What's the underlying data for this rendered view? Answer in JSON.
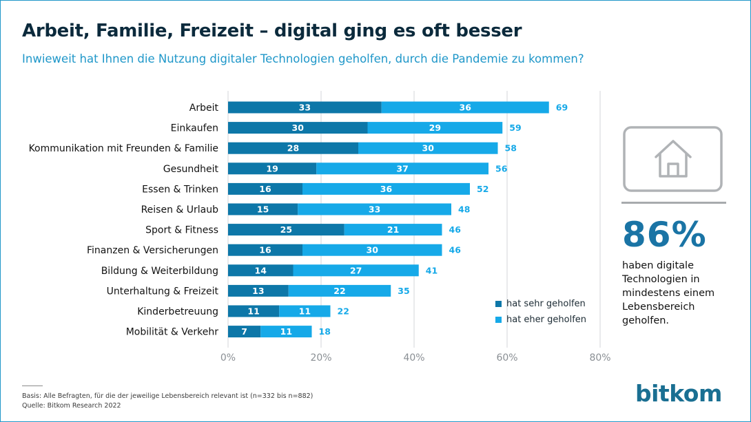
{
  "title": "Arbeit, Familie, Freizeit – digital ging es oft besser",
  "subtitle": "Inwieweit hat Ihnen die Nutzung digitaler Technologien geholfen, durch die Pandemie zu kommen?",
  "colors": {
    "dark": "#0d77a8",
    "light": "#16a9e8",
    "total": "#16a9e8",
    "grid": "#d3d6d9",
    "tick": "#8a8f94"
  },
  "chart_data": {
    "type": "bar",
    "orientation": "horizontal",
    "stacked": true,
    "categories": [
      "Arbeit",
      "Einkaufen",
      "Kommunikation mit Freunden & Familie",
      "Gesundheit",
      "Essen & Trinken",
      "Reisen & Urlaub",
      "Sport & Fitness",
      "Finanzen & Versicherungen",
      "Bildung & Weiterbildung",
      "Unterhaltung & Freizeit",
      "Kinderbetreuung",
      "Mobilität & Verkehr"
    ],
    "series": [
      {
        "name": "hat sehr geholfen",
        "values": [
          33,
          30,
          28,
          19,
          16,
          15,
          25,
          16,
          14,
          13,
          11,
          7
        ]
      },
      {
        "name": "hat eher geholfen",
        "values": [
          36,
          29,
          30,
          37,
          36,
          33,
          21,
          30,
          27,
          22,
          11,
          11
        ]
      }
    ],
    "totals": [
      69,
      59,
      58,
      56,
      52,
      48,
      46,
      46,
      41,
      35,
      22,
      18
    ],
    "xlim": [
      0,
      80
    ],
    "xticks": [
      "0%",
      "20%",
      "40%",
      "60%",
      "80%"
    ],
    "grid": true,
    "legend_position": "bottom-right"
  },
  "legend": {
    "dark_label": "hat sehr geholfen",
    "light_label": "hat eher geholfen"
  },
  "highlight": {
    "value": "86%",
    "lines": [
      "haben digitale",
      "Technologien in",
      "mindestens einem",
      "Lebensbereich",
      "geholfen."
    ]
  },
  "footnote": {
    "basis": "Basis: Alle Befragten, für die der jeweilige Lebensbereich relevant ist (n=332 bis n=882)",
    "source": "Quelle: Bitkom Research 2022"
  },
  "logo": {
    "part1": "bit",
    "part2": "kom"
  }
}
